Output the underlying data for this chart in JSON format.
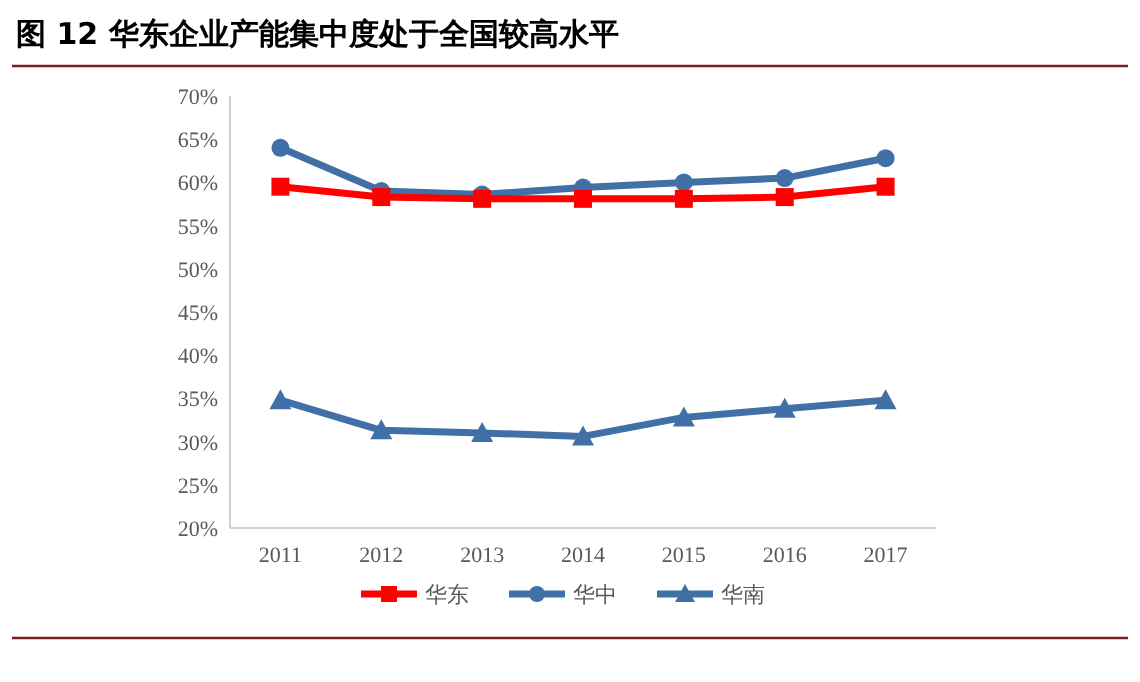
{
  "chart_data": {
    "type": "line",
    "title": "图 12   华东企业产能集中度处于全国较高水平",
    "categories": [
      "2011",
      "2012",
      "2013",
      "2014",
      "2015",
      "2016",
      "2017"
    ],
    "series": [
      {
        "name": "华东",
        "color": "#ff0000",
        "marker": "square",
        "values": [
          59.5,
          58.3,
          58.1,
          58.1,
          58.1,
          58.3,
          59.5
        ]
      },
      {
        "name": "华中",
        "color": "#4170a6",
        "marker": "circle",
        "values": [
          64.0,
          59.0,
          58.6,
          59.4,
          60.0,
          60.5,
          62.8
        ]
      },
      {
        "name": "华南",
        "color": "#4170a6",
        "marker": "triangle",
        "values": [
          34.8,
          31.3,
          31.0,
          30.6,
          32.8,
          33.8,
          34.8
        ]
      }
    ],
    "ylim": [
      20,
      70
    ],
    "yticks": [
      {
        "value": 20,
        "label": "20%"
      },
      {
        "value": 25,
        "label": "25%"
      },
      {
        "value": 30,
        "label": "30%"
      },
      {
        "value": 35,
        "label": "35%"
      },
      {
        "value": 40,
        "label": "40%"
      },
      {
        "value": 45,
        "label": "45%"
      },
      {
        "value": 50,
        "label": "50%"
      },
      {
        "value": 55,
        "label": "55%"
      },
      {
        "value": 60,
        "label": "60%"
      },
      {
        "value": 65,
        "label": "65%"
      },
      {
        "value": 70,
        "label": "70%"
      }
    ],
    "legend": "bottom",
    "grid": false,
    "line_style": "solid"
  }
}
